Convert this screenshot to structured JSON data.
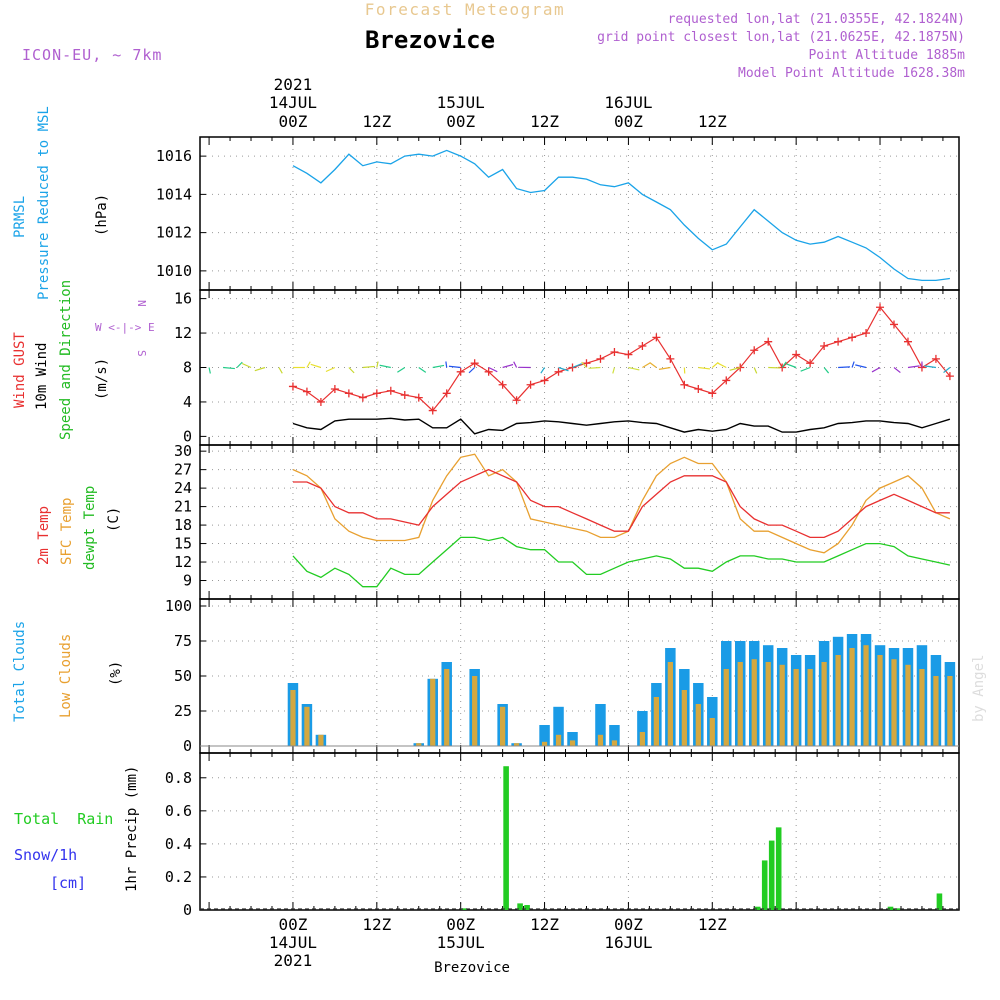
{
  "header": {
    "subtitle": "Forecast Meteogram",
    "title": "Brezovice",
    "model": "ICON-EU, ~ 7km",
    "requested": "requested lon,lat (21.0355E, 42.1824N)",
    "gridpoint": "grid point closest lon,lat (21.0625E, 42.1875N)",
    "point_alt": "Point Altitude 1885m",
    "model_alt": "Model Point Altitude 1628.38m"
  },
  "footer": {
    "location": "Brezovice",
    "credit": "by Angel"
  },
  "time_axis": {
    "top_labels": [
      {
        "l1": "2021",
        "l2": "14JUL",
        "l3": "00Z"
      },
      {
        "l1": "",
        "l2": "",
        "l3": "12Z"
      },
      {
        "l1": "",
        "l2": "15JUL",
        "l3": "00Z"
      },
      {
        "l1": "",
        "l2": "",
        "l3": "12Z"
      },
      {
        "l1": "",
        "l2": "16JUL",
        "l3": "00Z"
      },
      {
        "l1": "",
        "l2": "",
        "l3": "12Z"
      }
    ],
    "bottom_labels": [
      {
        "l1": "00Z",
        "l2": "14JUL",
        "l3": "2021"
      },
      {
        "l1": "12Z",
        "l2": "",
        "l3": ""
      },
      {
        "l1": "00Z",
        "l2": "15JUL",
        "l3": ""
      },
      {
        "l1": "12Z",
        "l2": "",
        "l3": ""
      },
      {
        "l1": "00Z",
        "l2": "16JUL",
        "l3": ""
      },
      {
        "l1": "12Z",
        "l2": "",
        "l3": ""
      }
    ]
  },
  "labels": {
    "p1_a": "PRMSL",
    "p1_b": "Pressure Reduced to MSL",
    "p1_unit": "(hPa)",
    "p2_gust": "Wind GUST",
    "p2_wind": "10m Wind",
    "p2_dir": "Speed and Direction",
    "p2_unit": "(m/s)",
    "compass_n": "N",
    "compass_s": "S",
    "compass_we": "W <-|-> E",
    "p3_t2m": "2m Temp",
    "p3_sfc": "SFC Temp",
    "p3_dew": "dewpt Temp",
    "p3_unit": "(C)",
    "p4_total": "Total Clouds",
    "p4_low": "Low Clouds",
    "p4_unit": "(%)",
    "p5_rain": "Total  Rain",
    "p5_snow": "Snow/1h",
    "p5_cm": "[cm]",
    "p5_unit": "1hr Precip (mm)"
  },
  "colors": {
    "pressure": "#1aa3e8",
    "gust": "#e83030",
    "wind": "#000000",
    "t2m": "#e83030",
    "sfc": "#e8a030",
    "dew": "#22cc22",
    "total_cloud": "#1a9be6",
    "low_cloud": "#d4a840",
    "rain": "#22cc22",
    "snow": "#3333ee",
    "title_sub": "#e8c890",
    "meta": "#b060d0",
    "grid": "#999999",
    "green_label": "#22bb22",
    "credit": "#dddddd"
  },
  "chart_data": [
    {
      "type": "line",
      "name": "PRMSL",
      "ylabel": "(hPa)",
      "ylim": [
        1009,
        1017
      ],
      "yticks": [
        1010,
        1012,
        1014,
        1016
      ],
      "x_hours": [
        0,
        2,
        4,
        6,
        8,
        10,
        12,
        14,
        16,
        18,
        20,
        22,
        24,
        26,
        28,
        30,
        32,
        34,
        36,
        38,
        40,
        42,
        44,
        46,
        48,
        50,
        52,
        54,
        56,
        58,
        60,
        62,
        64,
        66,
        68,
        70,
        72,
        74,
        76,
        78,
        80,
        82,
        84,
        86,
        88,
        90,
        92,
        94
      ],
      "values": [
        1015.5,
        1015.1,
        1014.6,
        1015.3,
        1016.1,
        1015.5,
        1015.7,
        1015.6,
        1016.0,
        1016.1,
        1016.0,
        1016.3,
        1016.0,
        1015.6,
        1014.9,
        1015.3,
        1014.3,
        1014.1,
        1014.2,
        1014.9,
        1014.9,
        1014.8,
        1014.5,
        1014.4,
        1014.6,
        1014.0,
        1013.6,
        1013.2,
        1012.4,
        1011.7,
        1011.1,
        1011.4,
        1012.3,
        1013.2,
        1012.6,
        1012.0,
        1011.6,
        1011.4,
        1011.5,
        1011.8,
        1011.5,
        1011.2,
        1010.7,
        1010.1,
        1009.6,
        1009.5,
        1009.5,
        1009.6
      ]
    },
    {
      "type": "line",
      "name": "Wind",
      "ylabel": "(m/s)",
      "ylim": [
        -1,
        17
      ],
      "yticks": [
        0,
        4,
        8,
        12,
        16
      ],
      "x_hours": [
        0,
        2,
        4,
        6,
        8,
        10,
        12,
        14,
        16,
        18,
        20,
        22,
        24,
        26,
        28,
        30,
        32,
        34,
        36,
        38,
        40,
        42,
        44,
        46,
        48,
        50,
        52,
        54,
        56,
        58,
        60,
        62,
        64,
        66,
        68,
        70,
        72,
        74,
        76,
        78,
        80,
        82,
        84,
        86,
        88,
        90,
        92,
        94
      ],
      "series": [
        {
          "name": "Wind GUST",
          "values": [
            5.8,
            5.2,
            4.0,
            5.5,
            5.0,
            4.5,
            5.0,
            5.3,
            4.8,
            4.5,
            3.0,
            5.0,
            7.5,
            8.5,
            7.5,
            6.0,
            4.2,
            6.0,
            6.5,
            7.5,
            8.0,
            8.5,
            9.0,
            9.8,
            9.5,
            10.5,
            11.5,
            9.0,
            6.0,
            5.5,
            5.0,
            6.5,
            8.0,
            10.0,
            11.0,
            8.0,
            9.5,
            8.5,
            10.5,
            11.0,
            11.5,
            12.0,
            15.0,
            13.0,
            11.0,
            8.0,
            9.0,
            7.0
          ]
        },
        {
          "name": "10m Wind",
          "values": [
            1.5,
            1.0,
            0.8,
            1.8,
            2.0,
            2.0,
            2.0,
            2.1,
            1.9,
            2.0,
            1.0,
            1.0,
            2.0,
            0.3,
            0.8,
            0.7,
            1.5,
            1.6,
            1.8,
            1.7,
            1.5,
            1.3,
            1.5,
            1.7,
            1.8,
            1.6,
            1.5,
            1.0,
            0.5,
            0.8,
            0.6,
            0.8,
            1.5,
            1.2,
            1.2,
            0.5,
            0.5,
            0.8,
            1.0,
            1.5,
            1.6,
            1.8,
            1.8,
            1.6,
            1.5,
            1.0,
            1.5,
            2.0
          ]
        }
      ]
    },
    {
      "type": "line",
      "name": "Temperature",
      "ylabel": "(C)",
      "ylim": [
        6,
        31
      ],
      "yticks": [
        9,
        12,
        15,
        18,
        21,
        24,
        27,
        30
      ],
      "x_hours": [
        0,
        2,
        4,
        6,
        8,
        10,
        12,
        14,
        16,
        18,
        20,
        22,
        24,
        26,
        28,
        30,
        32,
        34,
        36,
        38,
        40,
        42,
        44,
        46,
        48,
        50,
        52,
        54,
        56,
        58,
        60,
        62,
        64,
        66,
        68,
        70,
        72,
        74,
        76,
        78,
        80,
        82,
        84,
        86,
        88,
        90,
        92,
        94
      ],
      "series": [
        {
          "name": "2m Temp",
          "values": [
            25,
            25,
            24,
            21,
            20,
            20,
            19,
            19,
            18.5,
            18,
            21,
            23,
            25,
            26,
            27,
            26,
            25,
            22,
            21,
            21,
            20,
            19,
            18,
            17,
            17,
            21,
            23,
            25,
            26,
            26,
            26,
            25,
            21,
            19,
            18,
            18,
            17,
            16,
            16,
            17,
            19,
            21,
            22,
            23,
            22,
            21,
            20,
            20
          ]
        },
        {
          "name": "SFC Temp",
          "values": [
            27,
            26,
            24,
            19,
            17,
            16,
            15.5,
            15.5,
            15.5,
            16,
            22,
            26,
            29,
            29.5,
            26,
            27,
            25,
            19,
            18.5,
            18,
            17.5,
            17,
            16,
            16,
            17,
            22,
            26,
            28,
            29,
            28,
            28,
            25,
            19,
            17,
            17,
            16,
            15,
            14,
            13.5,
            15,
            18,
            22,
            24,
            25,
            26,
            24,
            20,
            19
          ]
        },
        {
          "name": "dewpt Temp",
          "values": [
            13,
            10.5,
            9.5,
            11,
            10,
            8,
            8,
            11,
            10,
            10,
            12,
            14,
            16,
            16,
            15.5,
            16,
            14.5,
            14,
            14,
            12,
            12,
            10,
            10,
            11,
            12,
            12.5,
            13,
            12.5,
            11,
            11,
            10.5,
            12,
            13,
            13,
            12.5,
            12.5,
            12,
            12,
            12,
            13,
            14,
            15,
            15,
            14.5,
            13,
            12.5,
            12,
            11.5
          ]
        }
      ]
    },
    {
      "type": "bar",
      "name": "Clouds",
      "ylabel": "(%)",
      "ylim": [
        -5,
        105
      ],
      "yticks": [
        0,
        25,
        50,
        75,
        100
      ],
      "x_hours": [
        0,
        2,
        4,
        6,
        8,
        10,
        12,
        14,
        16,
        18,
        20,
        22,
        24,
        26,
        28,
        30,
        32,
        34,
        36,
        38,
        40,
        42,
        44,
        46,
        48,
        50,
        52,
        54,
        56,
        58,
        60,
        62,
        64,
        66,
        68,
        70,
        72,
        74,
        76,
        78,
        80,
        82,
        84,
        86,
        88,
        90,
        92,
        94
      ],
      "series": [
        {
          "name": "Total Clouds",
          "values": [
            45,
            30,
            8,
            0,
            0,
            0,
            0,
            0,
            0,
            2,
            48,
            60,
            0,
            55,
            0,
            30,
            2,
            0,
            15,
            28,
            10,
            0,
            30,
            15,
            0,
            25,
            45,
            70,
            55,
            45,
            35,
            75,
            75,
            75,
            72,
            70,
            65,
            65,
            75,
            78,
            80,
            80,
            72,
            70,
            70,
            72,
            65,
            60
          ]
        },
        {
          "name": "Low Clouds",
          "values": [
            40,
            28,
            8,
            0,
            0,
            0,
            0,
            0,
            0,
            2,
            48,
            55,
            0,
            50,
            0,
            28,
            2,
            0,
            3,
            8,
            4,
            0,
            8,
            4,
            0,
            10,
            35,
            60,
            40,
            30,
            20,
            55,
            60,
            62,
            60,
            58,
            55,
            55,
            60,
            65,
            70,
            72,
            65,
            62,
            58,
            55,
            50,
            50
          ]
        }
      ]
    },
    {
      "type": "bar",
      "name": "1hr Precip",
      "ylabel": "1hr Precip (mm)",
      "ylim": [
        0,
        0.95
      ],
      "yticks": [
        0,
        0.2,
        0.4,
        0.6,
        0.8
      ],
      "series": [
        {
          "name": "Total Rain",
          "bars": [
            {
              "h": 24.5,
              "v": 0.01
            },
            {
              "h": 30.5,
              "v": 0.87
            },
            {
              "h": 32.5,
              "v": 0.04
            },
            {
              "h": 33.5,
              "v": 0.03
            },
            {
              "h": 66.5,
              "v": 0.02
            },
            {
              "h": 67.5,
              "v": 0.3
            },
            {
              "h": 68.5,
              "v": 0.42
            },
            {
              "h": 69.5,
              "v": 0.5
            },
            {
              "h": 85.5,
              "v": 0.02
            },
            {
              "h": 86.5,
              "v": 0.01
            },
            {
              "h": 92.5,
              "v": 0.1
            }
          ]
        },
        {
          "name": "Snow/1h",
          "bars": []
        }
      ]
    }
  ]
}
